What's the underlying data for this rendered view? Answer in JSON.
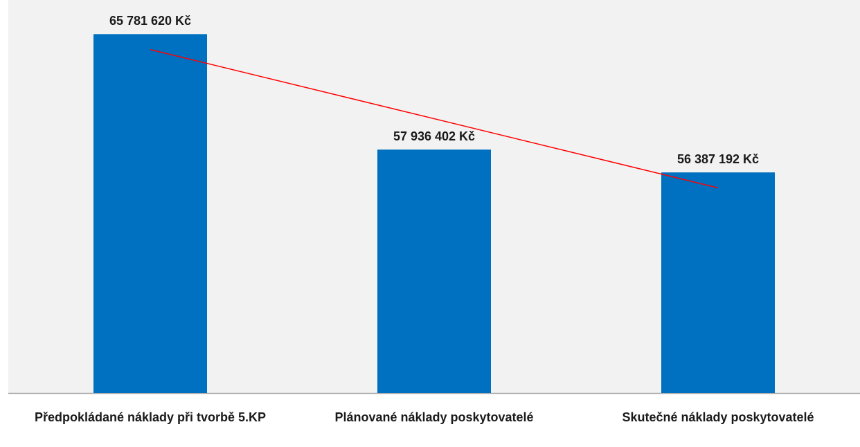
{
  "chart_data": {
    "type": "bar",
    "categories": [
      "Předpokládané náklady při tvorbě 5.KP",
      "Plánované náklady poskytovatelé",
      "Skutečné náklady poskytovatelé"
    ],
    "values": [
      65781620,
      57936402,
      56387192
    ],
    "value_labels": [
      "65 781 620 Kč",
      "57 936 402 Kč",
      "56 387 192 Kč"
    ],
    "color": "#0070c0",
    "ylim": [
      41400000,
      68100000
    ],
    "trendline": {
      "type": "linear",
      "color": "#ff0000"
    }
  }
}
